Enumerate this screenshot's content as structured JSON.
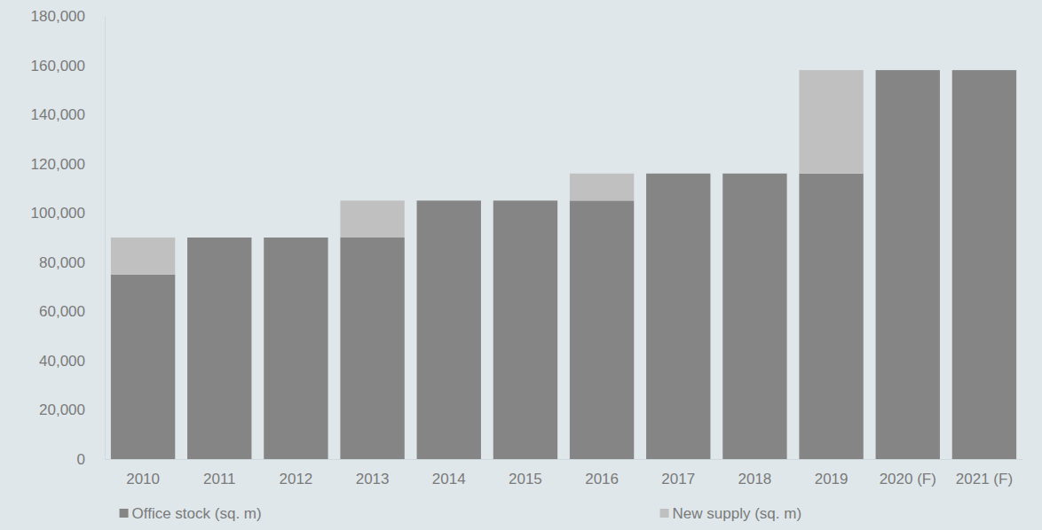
{
  "chart_data": {
    "type": "bar",
    "stacked": true,
    "grid": false,
    "legend": "bottom",
    "categories": [
      "2010",
      "2011",
      "2012",
      "2013",
      "2014",
      "2015",
      "2016",
      "2017",
      "2018",
      "2019",
      "2020 (F)",
      "2021 (F)"
    ],
    "series": [
      {
        "name": "Office stock (sq. m)",
        "color": "#858585",
        "values": [
          75000,
          90000,
          90000,
          90000,
          105000,
          105000,
          105000,
          116000,
          116000,
          116000,
          158000,
          158000
        ]
      },
      {
        "name": "New supply (sq. m)",
        "color": "#c0c0c0",
        "values": [
          15000,
          0,
          0,
          15000,
          0,
          0,
          11000,
          0,
          0,
          42000,
          0,
          0
        ]
      }
    ],
    "ylim": [
      0,
      180000
    ],
    "yticks": [
      0,
      {
        "value": 20000,
        "label": "20,000"
      },
      {
        "value": 40000,
        "label": "40,000"
      },
      {
        "value": 60000,
        "label": "60,000"
      },
      {
        "value": 80000,
        "label": "80,000"
      },
      {
        "value": 100000,
        "label": "100,000"
      },
      {
        "value": 120000,
        "label": "120,000"
      },
      {
        "value": 140000,
        "label": "140,000"
      },
      {
        "value": 160000,
        "label": "160,000"
      },
      {
        "value": 180000,
        "label": "180,000"
      }
    ]
  }
}
